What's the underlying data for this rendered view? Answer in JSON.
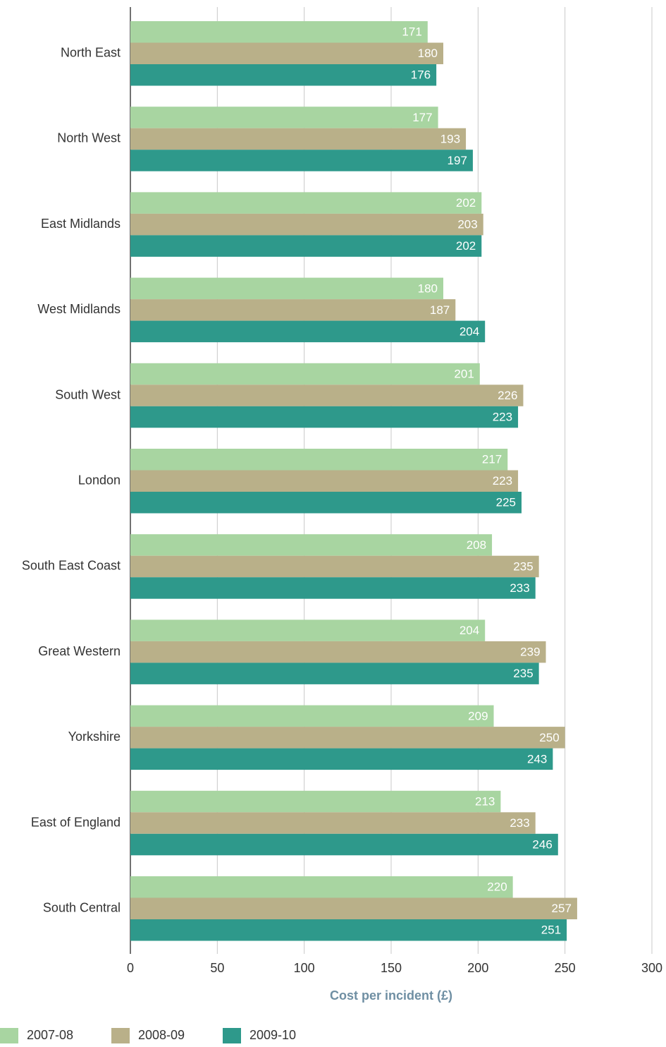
{
  "chart_data": {
    "type": "bar",
    "orientation": "horizontal",
    "x_label": "Cost per incident (£)",
    "categories": [
      "North East",
      "North West",
      "East Midlands",
      "West Midlands",
      "South West",
      "London",
      "South East Coast",
      "Great Western",
      "Yorkshire",
      "East of England",
      "South Central"
    ],
    "series": [
      {
        "name": "2007-08",
        "color": "#a8d5a1",
        "values": [
          171,
          177,
          202,
          180,
          201,
          217,
          208,
          204,
          209,
          213,
          220
        ]
      },
      {
        "name": "2008-09",
        "color": "#b9b089",
        "values": [
          180,
          193,
          203,
          187,
          226,
          223,
          235,
          239,
          250,
          233,
          257
        ]
      },
      {
        "name": "2009-10",
        "color": "#2e998b",
        "values": [
          176,
          197,
          202,
          204,
          223,
          225,
          233,
          235,
          243,
          246,
          251
        ]
      }
    ],
    "xlim": [
      0,
      300
    ],
    "xticks": [
      0,
      50,
      100,
      150,
      200,
      250,
      300
    ],
    "grid": true
  }
}
